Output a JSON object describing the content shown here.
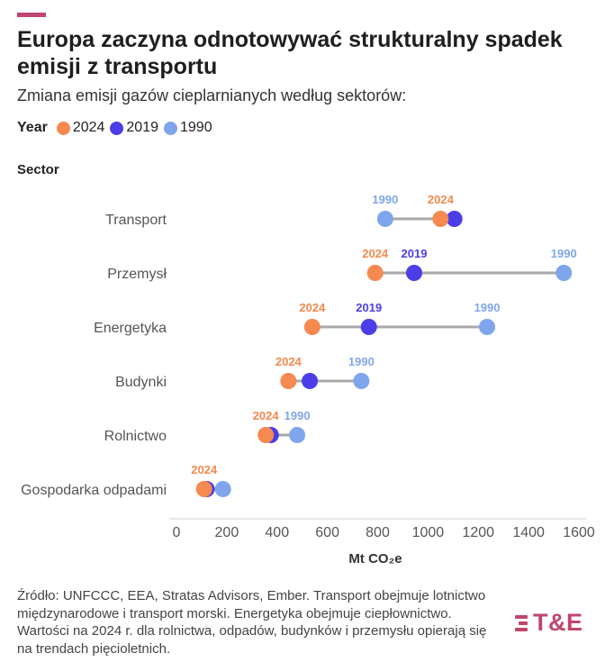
{
  "header": {
    "title": "Europa zaczyna odnotowywać strukturalny spadek emisji z transportu",
    "subtitle": "Zmiana emisji gazów cieplarnianych według sektorów:"
  },
  "legend": {
    "title": "Year",
    "items": [
      {
        "label": "2024",
        "color": "#f5894f"
      },
      {
        "label": "2019",
        "color": "#4b3ee8"
      },
      {
        "label": "1990",
        "color": "#7fa6ec"
      }
    ]
  },
  "source_note": "Źródło: UNFCCC, EEA, Stratas Advisors, Ember. Transport obejmuje lotnictwo międzynarodowe i transport morski. Energetyka obejmuje ciepłownictwo. Wartości na 2024 r. dla rolnictwa, odpadów, budynków i przemysłu opierają się na trendach pięcioletnich.",
  "logo_text": "T&E",
  "chart_data": {
    "type": "dumbbell",
    "ylabel": "Sector",
    "xlabel": "Mt CO₂e",
    "xlim": [
      0,
      1600
    ],
    "xticks": [
      "0",
      "200",
      "400",
      "600",
      "800",
      "1000",
      "1200",
      "1400",
      "1600"
    ],
    "series": [
      {
        "name": "2024",
        "color": "#f5894f"
      },
      {
        "name": "2019",
        "color": "#4b3ee8"
      },
      {
        "name": "1990",
        "color": "#7fa6ec"
      }
    ],
    "categories": [
      "Transport",
      "Przemysł",
      "Energetyka",
      "Budynki",
      "Rolnictwo",
      "Gospodarka odpadami"
    ],
    "data": [
      {
        "sector": "Transport",
        "v2024": 1050,
        "v2019": 1105,
        "v1990": 830,
        "labels": [
          {
            "year": "1990",
            "color": "#7fa6ec",
            "at": 830
          },
          {
            "year": "2024",
            "color": "#f5894f",
            "at": 1050
          }
        ]
      },
      {
        "sector": "Przemysł",
        "v2024": 790,
        "v2019": 945,
        "v1990": 1540,
        "labels": [
          {
            "year": "2024",
            "color": "#f5894f",
            "at": 790
          },
          {
            "year": "2019",
            "color": "#4b3ee8",
            "at": 945
          },
          {
            "year": "1990",
            "color": "#7fa6ec",
            "at": 1540
          }
        ]
      },
      {
        "sector": "Energetyka",
        "v2024": 540,
        "v2019": 765,
        "v1990": 1235,
        "labels": [
          {
            "year": "2024",
            "color": "#f5894f",
            "at": 540
          },
          {
            "year": "2019",
            "color": "#4b3ee8",
            "at": 765
          },
          {
            "year": "1990",
            "color": "#7fa6ec",
            "at": 1235
          }
        ]
      },
      {
        "sector": "Budynki",
        "v2024": 445,
        "v2019": 530,
        "v1990": 735,
        "labels": [
          {
            "year": "2024",
            "color": "#f5894f",
            "at": 445
          },
          {
            "year": "1990",
            "color": "#7fa6ec",
            "at": 735
          }
        ]
      },
      {
        "sector": "Rolnictwo",
        "v2024": 355,
        "v2019": 375,
        "v1990": 480,
        "labels": [
          {
            "year": "2024",
            "color": "#f5894f",
            "at": 355
          },
          {
            "year": "1990",
            "color": "#7fa6ec",
            "at": 480
          }
        ]
      },
      {
        "sector": "Gospodarka odpadami",
        "v2024": 110,
        "v2019": 120,
        "v1990": 185,
        "labels": [
          {
            "year": "2024",
            "color": "#f5894f",
            "at": 110
          }
        ]
      }
    ]
  }
}
